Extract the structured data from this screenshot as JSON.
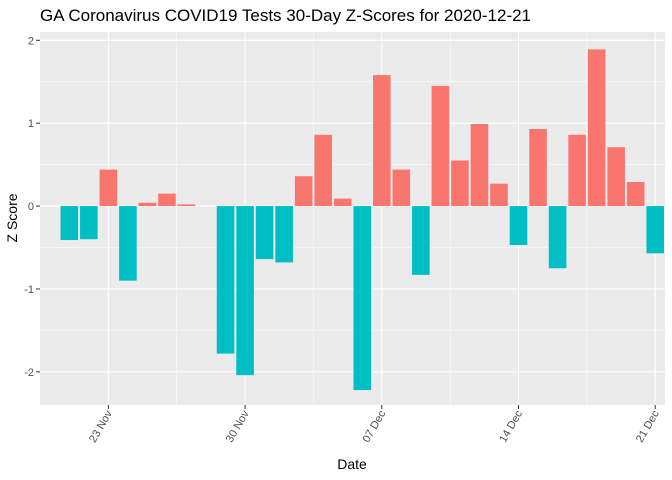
{
  "chart_data": {
    "type": "bar",
    "title": "GA Coronavirus COVID19 Tests 30-Day Z-Scores for 2020-12-21",
    "xlabel": "Date",
    "ylabel": "Z Score",
    "ylim": [
      -2.4,
      2.1
    ],
    "y_ticks": [
      -2,
      -1,
      0,
      1,
      2
    ],
    "y_tick_labels": [
      "-2",
      "-1",
      "0",
      "1",
      "2"
    ],
    "x_ticks": [
      "2020-11-23",
      "2020-11-30",
      "2020-12-07",
      "2020-12-14",
      "2020-12-21"
    ],
    "x_tick_labels": [
      "23 Nov",
      "30 Nov",
      "07 Dec",
      "14 Dec",
      "21 Dec"
    ],
    "x_range": [
      "2020-11-20",
      "2020-12-21"
    ],
    "grid": true,
    "legend": "none",
    "colors": {
      "positive": "#F8766D",
      "negative": "#00BFC4",
      "panel": "#EBEBEB",
      "grid": "#FFFFFF"
    },
    "x": [
      "2020-11-21",
      "2020-11-22",
      "2020-11-23",
      "2020-11-24",
      "2020-11-25",
      "2020-11-26",
      "2020-11-27",
      "2020-11-28",
      "2020-11-29",
      "2020-11-30",
      "2020-12-01",
      "2020-12-02",
      "2020-12-03",
      "2020-12-04",
      "2020-12-05",
      "2020-12-06",
      "2020-12-07",
      "2020-12-08",
      "2020-12-09",
      "2020-12-10",
      "2020-12-11",
      "2020-12-12",
      "2020-12-13",
      "2020-12-14",
      "2020-12-15",
      "2020-12-16",
      "2020-12-17",
      "2020-12-18",
      "2020-12-19",
      "2020-12-20",
      "2020-12-21"
    ],
    "values": [
      -0.41,
      -0.4,
      0.44,
      -0.9,
      0.04,
      0.15,
      0.02,
      null,
      -1.78,
      -2.04,
      -0.64,
      -0.68,
      0.36,
      0.86,
      0.09,
      -2.22,
      1.58,
      0.44,
      -0.83,
      1.45,
      0.55,
      0.99,
      0.27,
      -0.47,
      0.93,
      -0.75,
      0.86,
      1.89,
      0.71,
      0.29,
      -0.57
    ]
  }
}
